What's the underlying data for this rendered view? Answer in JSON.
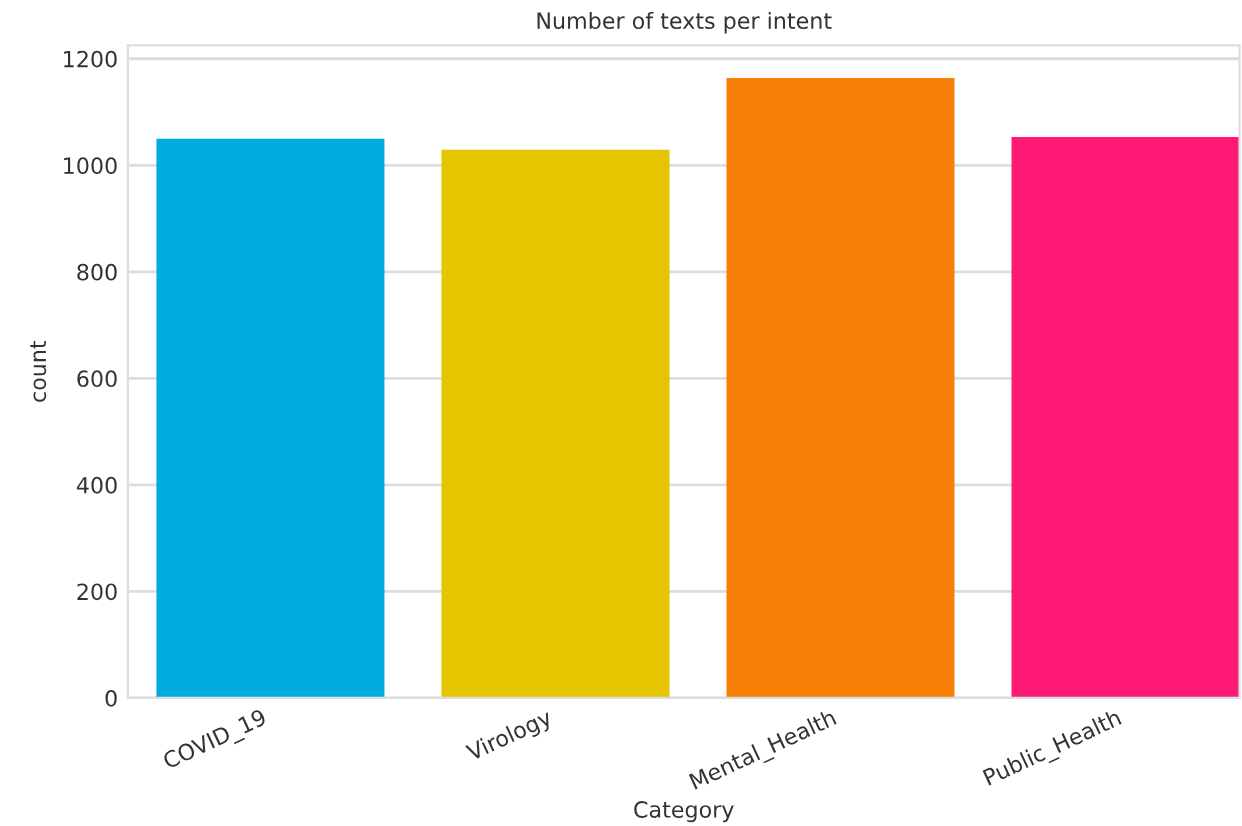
{
  "chart_data": {
    "type": "bar",
    "title": "Number of texts per intent",
    "xlabel": "Category",
    "ylabel": "count",
    "categories": [
      "COVID_19",
      "Virology",
      "Mental_Health",
      "Public_Health"
    ],
    "values": [
      1050,
      1029,
      1164,
      1053
    ],
    "colors": [
      "#00acdf",
      "#e5c400",
      "#f77f05",
      "#ff1a75"
    ],
    "ylim": [
      0,
      1225
    ],
    "yticks": [
      0,
      200,
      400,
      600,
      800,
      1000,
      1200
    ],
    "grid": "y"
  }
}
